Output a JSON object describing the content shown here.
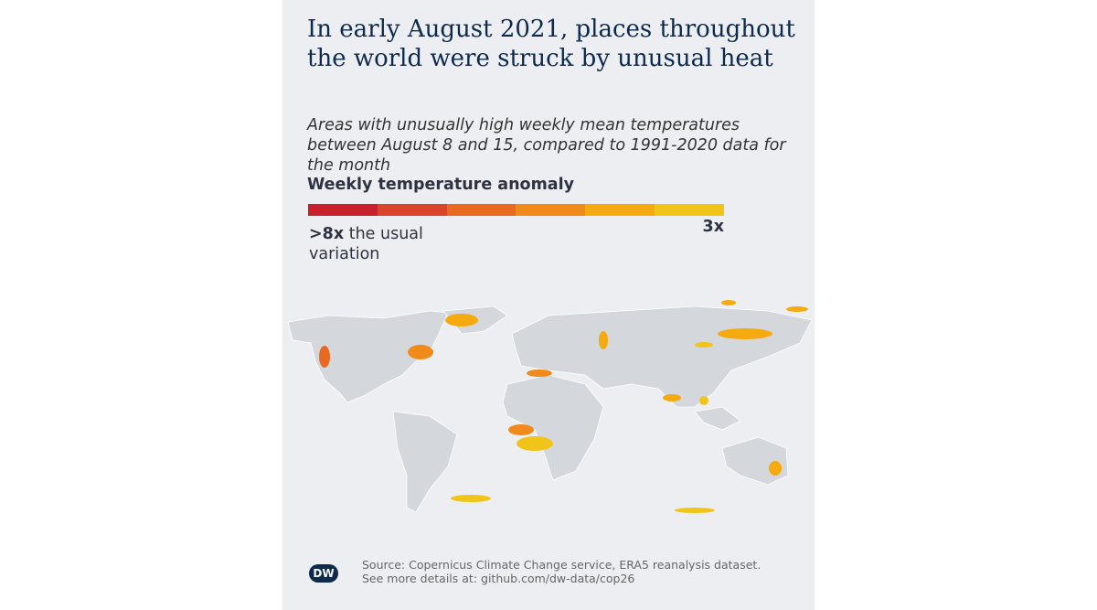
{
  "header": {
    "title": "In early August 2021, places throughout the world were struck by unusual heat",
    "subtitle": "Areas with unusually high weekly mean temperatures between August 8 and 15, compared to 1991-2020 data for the month"
  },
  "legend": {
    "title": "Weekly temperature anomaly",
    "colors": [
      "#c8202c",
      "#d8452a",
      "#e8691f",
      "#f08a1a",
      "#f5aa10",
      "#f0c419"
    ],
    "min_label_bold": ">8x",
    "min_label_rest": "the usual variation",
    "max_label": "3x"
  },
  "footer": {
    "logo": "DW",
    "source": "Source: Copernicus Climate Change service, ERA5 reanalysis dataset.",
    "details": "See more details at: github.com/dw-data/cop26"
  }
}
